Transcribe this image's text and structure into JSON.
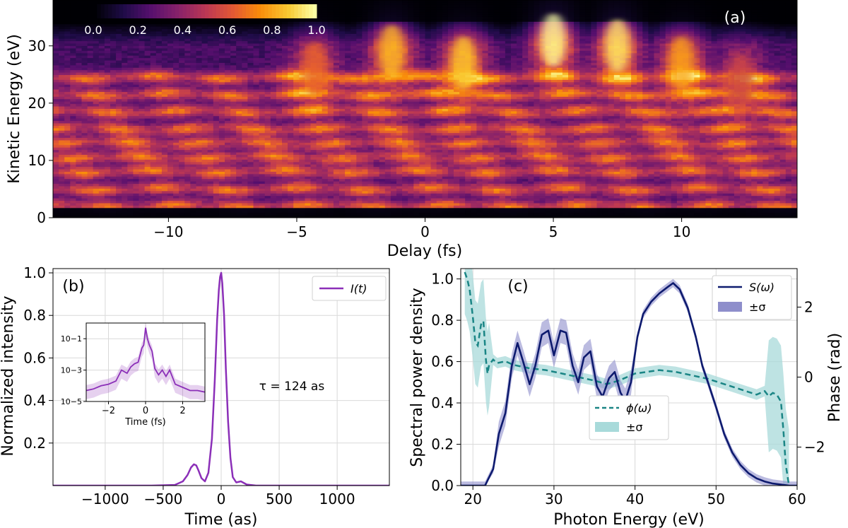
{
  "chart_data": [
    {
      "panel": "(a)",
      "type": "heatmap",
      "xlabel": "Delay (fs)",
      "ylabel": "Kinetic Energy (eV)",
      "xlim": [
        -14.5,
        14.5
      ],
      "ylim": [
        0,
        38
      ],
      "xticks": [
        -10,
        -5,
        0,
        5,
        10
      ],
      "xtick_labels": [
        "−10",
        "−5",
        "0",
        "5",
        "10"
      ],
      "yticks": [
        0,
        10,
        20,
        30
      ],
      "ytick_labels": [
        "0",
        "10",
        "20",
        "30"
      ],
      "colormap": "inferno",
      "colorbar": {
        "range": [
          0.0,
          1.0
        ],
        "ticks": [
          "0.0",
          "0.2",
          "0.4",
          "0.6",
          "0.8",
          "1.0"
        ],
        "placement": "top-left inside"
      },
      "energy_bands_eV": [
        2,
        5,
        8,
        10.5,
        13,
        15.5,
        18.5,
        21.5,
        24.5
      ],
      "peak_lobes": [
        {
          "delay_fs": -4.3,
          "energy_eV": 26,
          "intensity": 0.65
        },
        {
          "delay_fs": -1.3,
          "energy_eV": 29,
          "intensity": 0.85
        },
        {
          "delay_fs": 1.5,
          "energy_eV": 27,
          "intensity": 0.88
        },
        {
          "delay_fs": 5.0,
          "energy_eV": 31,
          "intensity": 1.0
        },
        {
          "delay_fs": 7.5,
          "energy_eV": 30,
          "intensity": 0.95
        },
        {
          "delay_fs": 10.0,
          "energy_eV": 27,
          "intensity": 0.8
        },
        {
          "delay_fs": 12.3,
          "energy_eV": 24,
          "intensity": 0.55
        }
      ]
    },
    {
      "panel": "(b)",
      "type": "line",
      "xlabel": "Time (as)",
      "ylabel": "Normalized intensity",
      "xlim": [
        -1450,
        1450
      ],
      "ylim": [
        0,
        1.02
      ],
      "xticks": [
        -1000,
        -500,
        0,
        500,
        1000
      ],
      "xtick_labels": [
        "−1000",
        "−500",
        "0",
        "500",
        "1000"
      ],
      "yticks": [
        0.2,
        0.4,
        0.6,
        0.8,
        1.0
      ],
      "ytick_labels": [
        "0.2",
        "0.4",
        "0.6",
        "0.8",
        "1.0"
      ],
      "legend": "upper right",
      "series": [
        {
          "name": "I(t)",
          "color": "#8b2fb8",
          "x": [
            -1450,
            -600,
            -400,
            -330,
            -290,
            -260,
            -235,
            -215,
            -195,
            -170,
            -140,
            -110,
            -80,
            -55,
            -35,
            -20,
            -10,
            0,
            10,
            25,
            40,
            60,
            80,
            100,
            130,
            170,
            220,
            300,
            1450
          ],
          "y": [
            0,
            0,
            0.003,
            0.02,
            0.05,
            0.085,
            0.1,
            0.095,
            0.07,
            0.035,
            0.02,
            0.06,
            0.22,
            0.5,
            0.78,
            0.92,
            0.98,
            1.0,
            0.95,
            0.8,
            0.55,
            0.3,
            0.13,
            0.04,
            0.015,
            0.02,
            0.005,
            0.0,
            0
          ]
        }
      ],
      "annotation": "τ = 124 as",
      "inset": {
        "xlabel": "Time (fs)",
        "xlim": [
          -3.2,
          3.2
        ],
        "xticks": [
          -2,
          0,
          2
        ],
        "xtick_labels": [
          "−2",
          "0",
          "2"
        ],
        "yscale": "log",
        "ylim_log10": [
          -5,
          0
        ],
        "yticks_log10": [
          -5,
          -3,
          -1
        ],
        "ytick_labels": [
          "10−5",
          "10−3",
          "10−1"
        ],
        "x": [
          -3.2,
          -2.8,
          -2.4,
          -2.0,
          -1.6,
          -1.3,
          -1.0,
          -0.8,
          -0.6,
          -0.4,
          -0.2,
          -0.1,
          0.0,
          0.1,
          0.2,
          0.35,
          0.5,
          0.7,
          0.9,
          1.1,
          1.3,
          1.6,
          2.0,
          2.4,
          2.8,
          3.2
        ],
        "log10_y": [
          -4.3,
          -4.2,
          -4.0,
          -3.9,
          -3.7,
          -3.0,
          -3.2,
          -2.8,
          -2.6,
          -2.5,
          -1.6,
          -1.4,
          -0.3,
          -1.0,
          -1.4,
          -1.8,
          -2.9,
          -3.3,
          -3.0,
          -3.4,
          -3.0,
          -3.9,
          -4.1,
          -4.3,
          -4.3,
          -4.4
        ]
      }
    },
    {
      "panel": "(c)",
      "type": "line",
      "xlabel": "Photon Energy (eV)",
      "ylabel": "Spectral power density",
      "ylabel_right": "Phase (rad)",
      "xlim": [
        18.5,
        60
      ],
      "ylim": [
        0,
        1.05
      ],
      "ylim_right": [
        -3.1,
        3.1
      ],
      "xticks": [
        20,
        30,
        40,
        50,
        60
      ],
      "xtick_labels": [
        "20",
        "30",
        "40",
        "50",
        "60"
      ],
      "yticks": [
        0.0,
        0.2,
        0.4,
        0.6,
        0.8,
        1.0
      ],
      "ytick_labels": [
        "0.0",
        "0.2",
        "0.4",
        "0.6",
        "0.8",
        "1.0"
      ],
      "yticks_right": [
        -2,
        0,
        2
      ],
      "ytick_labels_right": [
        "−2",
        "0",
        "2"
      ],
      "series": [
        {
          "name": "S(ω)",
          "band_label": "±σ",
          "color": "#0d1a6e",
          "band_color": "#8e8ecb",
          "x": [
            18.5,
            21.5,
            22.5,
            23.2,
            24.0,
            24.8,
            25.5,
            26.2,
            27.0,
            27.7,
            28.5,
            29.3,
            30.0,
            30.8,
            31.5,
            32.3,
            33.0,
            33.7,
            34.5,
            35.3,
            36.0,
            36.8,
            37.5,
            38.2,
            38.8,
            39.5,
            40.3,
            41.0,
            42.0,
            43.0,
            44.0,
            44.7,
            45.5,
            46.5,
            47.5,
            48.3,
            49.0,
            50.0,
            51.0,
            52.0,
            53.0,
            54.0,
            55.0,
            56.0,
            57.0,
            58.0,
            59.0,
            60.0
          ],
          "y": [
            0.0,
            0.0,
            0.08,
            0.25,
            0.35,
            0.58,
            0.69,
            0.6,
            0.49,
            0.58,
            0.73,
            0.75,
            0.63,
            0.75,
            0.74,
            0.58,
            0.5,
            0.62,
            0.65,
            0.48,
            0.43,
            0.52,
            0.55,
            0.45,
            0.41,
            0.5,
            0.72,
            0.83,
            0.89,
            0.93,
            0.96,
            0.98,
            0.95,
            0.86,
            0.72,
            0.58,
            0.5,
            0.38,
            0.25,
            0.16,
            0.1,
            0.06,
            0.035,
            0.02,
            0.01,
            0.005,
            0.0,
            0.0
          ]
        },
        {
          "name": "ϕ(ω)",
          "band_label": "±σ",
          "axis": "right",
          "color": "#1a8585",
          "band_color": "#a8dada",
          "x": [
            19.0,
            19.3,
            19.6,
            20.0,
            20.3,
            20.6,
            21.0,
            21.3,
            21.6,
            21.8,
            22.0,
            22.5,
            23.0,
            24.0,
            25.0,
            27.0,
            29.0,
            31.0,
            33.0,
            35.0,
            36.5,
            38.0,
            40.0,
            41.5,
            43.0,
            45.0,
            47.0,
            49.0,
            51.0,
            53.0,
            55.0,
            56.0,
            56.5,
            57.0,
            57.5,
            58.0,
            58.3,
            58.6,
            59.0
          ],
          "y": [
            3.0,
            2.8,
            2.5,
            1.7,
            1.0,
            0.9,
            1.5,
            1.6,
            0.5,
            0.1,
            0.35,
            0.5,
            0.4,
            0.45,
            0.35,
            0.25,
            0.2,
            0.1,
            0.0,
            -0.1,
            -0.2,
            -0.1,
            0.1,
            0.15,
            0.2,
            0.15,
            0.05,
            -0.05,
            -0.2,
            -0.35,
            -0.5,
            -0.4,
            -0.55,
            -0.45,
            -0.5,
            -0.7,
            -1.5,
            -2.5,
            -3.1
          ]
        }
      ]
    }
  ]
}
